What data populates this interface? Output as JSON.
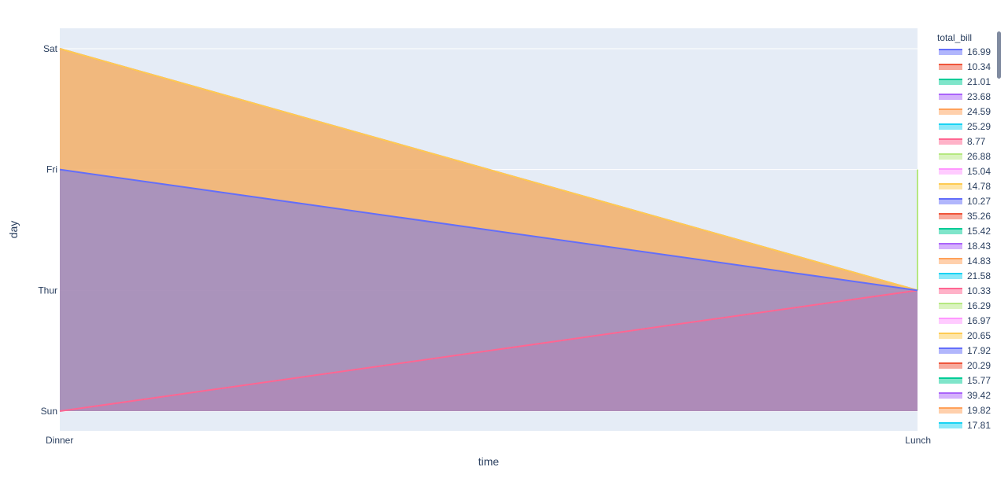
{
  "chart_data": {
    "type": "area",
    "xlabel": "time",
    "ylabel": "day",
    "x_categories": [
      "Dinner",
      "Lunch"
    ],
    "y_categories": [
      "Sun",
      "Thur",
      "Fri",
      "Sat"
    ],
    "grid": true,
    "legend_title": "total_bill",
    "legend_placement": "right",
    "colors": [
      "#636efa",
      "#EF553B",
      "#00cc96",
      "#ab63fa",
      "#FFA15A",
      "#19d3f3",
      "#FF6692",
      "#B6E880",
      "#FF97FF",
      "#FECB52"
    ],
    "series": [
      {
        "name": "16.99",
        "points": [
          {
            "x": "Dinner",
            "y": "Sun"
          }
        ]
      },
      {
        "name": "10.34",
        "points": [
          {
            "x": "Dinner",
            "y": "Sun"
          }
        ]
      },
      {
        "name": "21.01",
        "points": [
          {
            "x": "Dinner",
            "y": "Sun"
          }
        ]
      },
      {
        "name": "23.68",
        "points": [
          {
            "x": "Dinner",
            "y": "Sat"
          },
          {
            "x": "Lunch",
            "y": "Thur"
          }
        ]
      },
      {
        "name": "24.59",
        "points": [
          {
            "x": "Dinner",
            "y": "Sat"
          },
          {
            "x": "Lunch",
            "y": "Thur"
          }
        ]
      },
      {
        "name": "25.29",
        "points": [
          {
            "x": "Dinner",
            "y": "Sun"
          }
        ]
      },
      {
        "name": "8.77",
        "points": [
          {
            "x": "Dinner",
            "y": "Sun"
          },
          {
            "x": "Lunch",
            "y": "Thur"
          }
        ]
      },
      {
        "name": "26.88",
        "points": [
          {
            "x": "Lunch",
            "y": "Fri"
          },
          {
            "x": "Lunch",
            "y": "Thur"
          }
        ]
      },
      {
        "name": "15.04",
        "points": [
          {
            "x": "Dinner",
            "y": "Sun"
          }
        ]
      },
      {
        "name": "14.78",
        "points": [
          {
            "x": "Dinner",
            "y": "Sat"
          },
          {
            "x": "Lunch",
            "y": "Thur"
          }
        ]
      },
      {
        "name": "10.27",
        "points": [
          {
            "x": "Dinner",
            "y": "Fri"
          },
          {
            "x": "Lunch",
            "y": "Thur"
          }
        ]
      },
      {
        "name": "35.26",
        "points": [
          {
            "x": "Dinner",
            "y": "Sun"
          }
        ]
      },
      {
        "name": "15.42",
        "points": [
          {
            "x": "Dinner",
            "y": "Sun"
          }
        ]
      },
      {
        "name": "18.43",
        "points": [
          {
            "x": "Dinner",
            "y": "Sun"
          }
        ]
      },
      {
        "name": "14.83",
        "points": [
          {
            "x": "Dinner",
            "y": "Sun"
          }
        ]
      },
      {
        "name": "21.58",
        "points": [
          {
            "x": "Dinner",
            "y": "Sun"
          }
        ]
      },
      {
        "name": "10.33",
        "points": [
          {
            "x": "Dinner",
            "y": "Sun"
          }
        ]
      },
      {
        "name": "16.29",
        "points": [
          {
            "x": "Dinner",
            "y": "Sun"
          }
        ]
      },
      {
        "name": "16.97",
        "points": [
          {
            "x": "Dinner",
            "y": "Sun"
          }
        ]
      },
      {
        "name": "20.65",
        "points": [
          {
            "x": "Dinner",
            "y": "Sat"
          }
        ]
      },
      {
        "name": "17.92",
        "points": [
          {
            "x": "Dinner",
            "y": "Sat"
          }
        ]
      },
      {
        "name": "20.29",
        "points": [
          {
            "x": "Dinner",
            "y": "Sat"
          }
        ]
      },
      {
        "name": "15.77",
        "points": [
          {
            "x": "Dinner",
            "y": "Sat"
          }
        ]
      },
      {
        "name": "39.42",
        "points": [
          {
            "x": "Dinner",
            "y": "Sat"
          }
        ]
      },
      {
        "name": "19.82",
        "points": [
          {
            "x": "Dinner",
            "y": "Sat"
          }
        ]
      },
      {
        "name": "17.81",
        "points": [
          {
            "x": "Dinner",
            "y": "Sat"
          }
        ]
      }
    ]
  }
}
